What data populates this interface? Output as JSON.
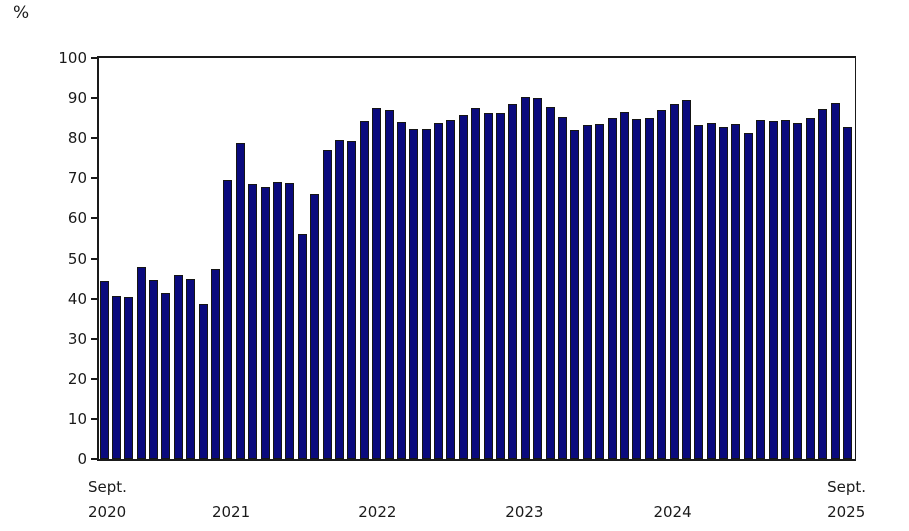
{
  "chart_data": {
    "type": "bar",
    "title": "",
    "unit_label": "%",
    "grid": false,
    "legend": false,
    "background": "#ffffff",
    "bar_color": "#0a0a7d",
    "bar_border_color": "#151515",
    "axis_color": "#1a1a1a",
    "text_color": "#1a1a1a",
    "y_axis": {
      "min": 0,
      "max": 100,
      "tick_step": 10,
      "ticks": [
        0,
        10,
        20,
        30,
        40,
        50,
        60,
        70,
        80,
        90,
        100
      ]
    },
    "x_axis": {
      "tick_labels": [
        {
          "lines": [
            "Sept.",
            "2020"
          ],
          "pos": 0.0,
          "align": "start"
        },
        {
          "lines": [
            "2021"
          ],
          "pos": 0.176,
          "align": "center"
        },
        {
          "lines": [
            "2022"
          ],
          "pos": 0.3695,
          "align": "center"
        },
        {
          "lines": [
            "2023"
          ],
          "pos": 0.564,
          "align": "center"
        },
        {
          "lines": [
            "2024"
          ],
          "pos": 0.76,
          "align": "center"
        },
        {
          "lines": [
            "Sept.",
            "2025"
          ],
          "pos": 1.0,
          "align": "end"
        }
      ]
    },
    "period": {
      "start": "Sept. 2020",
      "end": "Sept. 2025"
    },
    "values": [
      44.3,
      40.6,
      40.5,
      47.9,
      44.6,
      41.4,
      45.8,
      45.0,
      38.6,
      47.3,
      69.6,
      78.7,
      68.5,
      67.8,
      69.2,
      68.9,
      56.2,
      66.0,
      77.0,
      79.5,
      79.4,
      84.2,
      87.5,
      87.0,
      84.0,
      82.2,
      82.4,
      83.8,
      84.5,
      85.8,
      87.5,
      86.4,
      86.4,
      88.6,
      90.2,
      90.1,
      87.7,
      85.4,
      82.1,
      83.3,
      83.6,
      85.0,
      86.6,
      84.7,
      85.0,
      87.0,
      88.6,
      89.5,
      83.4,
      83.7,
      82.7,
      83.6,
      81.4,
      84.5,
      84.3,
      84.6,
      83.8,
      85.0,
      87.2,
      88.7,
      82.9
    ]
  }
}
